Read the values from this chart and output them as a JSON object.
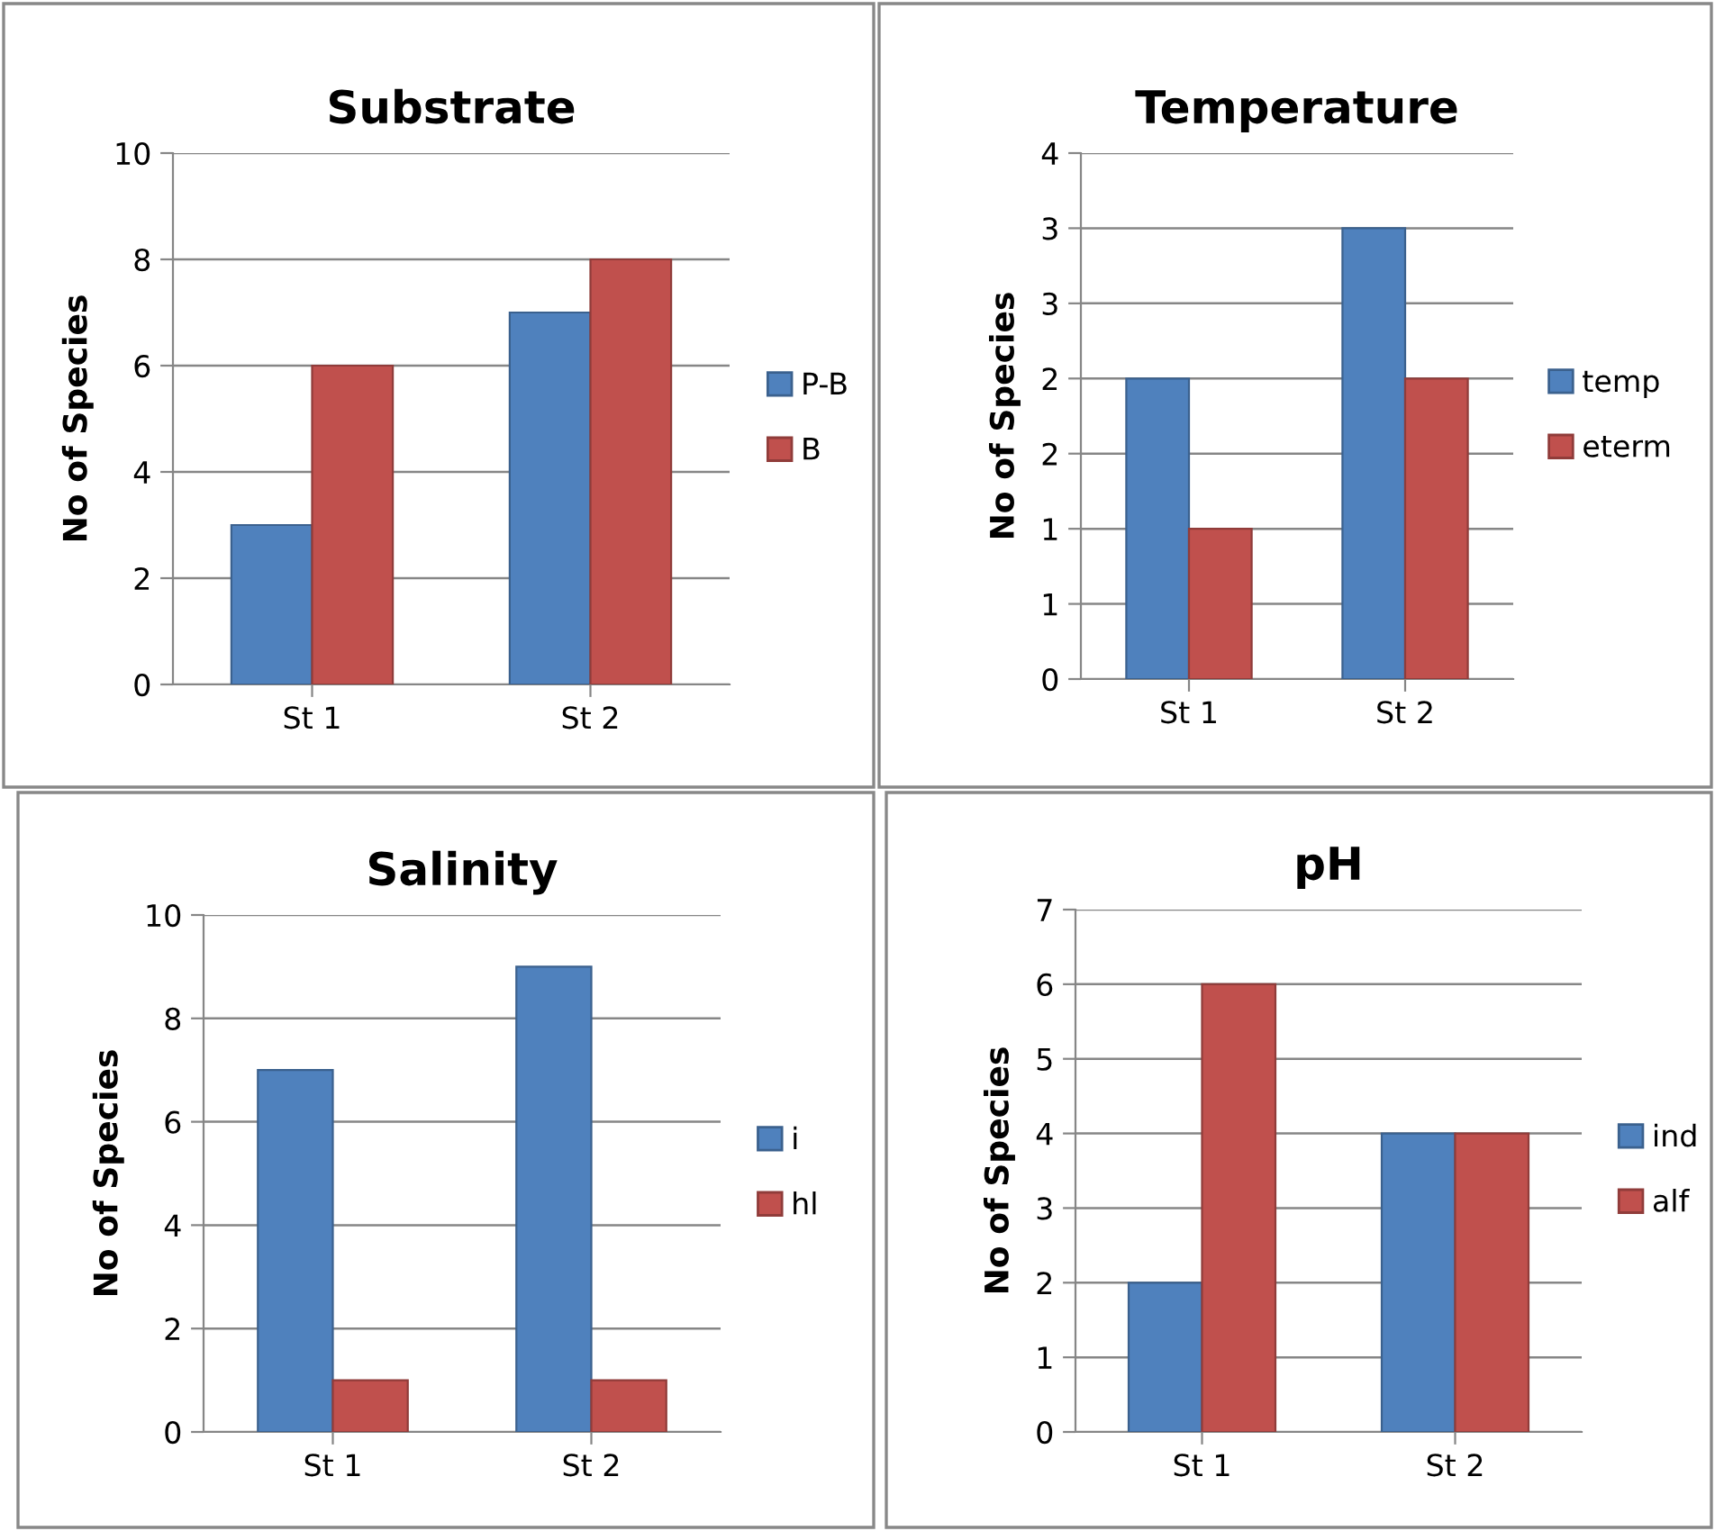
{
  "chart_data": [
    {
      "type": "bar",
      "title": "Substrate",
      "ylabel": "No of Species",
      "categories": [
        "St 1",
        "St 2"
      ],
      "series": [
        {
          "name": "P-B",
          "color": "#4f81bd",
          "values": [
            3,
            7
          ]
        },
        {
          "name": "B",
          "color": "#c0504d",
          "values": [
            6,
            8
          ]
        }
      ],
      "ylim": [
        0,
        10
      ],
      "yticks": [
        0,
        2,
        4,
        6,
        8,
        10
      ],
      "grid": "y",
      "legend": "right"
    },
    {
      "type": "bar",
      "title": "Temperature",
      "ylabel": "No of Species",
      "categories": [
        "St 1",
        "St 2"
      ],
      "series": [
        {
          "name": "temp",
          "color": "#4f81bd",
          "values": [
            2,
            3
          ]
        },
        {
          "name": "eterm",
          "color": "#c0504d",
          "values": [
            1,
            2
          ]
        }
      ],
      "ylim": [
        0,
        3.5
      ],
      "yticks": [
        0,
        {
          "value": 0.5,
          "label": "1"
        },
        1,
        {
          "value": 1.5,
          "label": "2"
        },
        2,
        {
          "value": 2.5,
          "label": "3"
        },
        3,
        {
          "value": 3.5,
          "label": "4"
        }
      ],
      "grid": "y",
      "legend": "right"
    },
    {
      "type": "bar",
      "title": "Salinity",
      "ylabel": "No of Species",
      "categories": [
        "St 1",
        "St 2"
      ],
      "series": [
        {
          "name": "i",
          "color": "#4f81bd",
          "values": [
            7,
            9
          ]
        },
        {
          "name": "hl",
          "color": "#c0504d",
          "values": [
            1,
            1
          ]
        }
      ],
      "ylim": [
        0,
        10
      ],
      "yticks": [
        0,
        2,
        4,
        6,
        8,
        10
      ],
      "grid": "y",
      "legend": "right"
    },
    {
      "type": "bar",
      "title": "pH",
      "ylabel": "No of Species",
      "categories": [
        "St 1",
        "St 2"
      ],
      "series": [
        {
          "name": "ind",
          "color": "#4f81bd",
          "values": [
            2,
            4
          ]
        },
        {
          "name": "alf",
          "color": "#c0504d",
          "values": [
            6,
            4
          ]
        }
      ],
      "ylim": [
        0,
        7
      ],
      "yticks": [
        0,
        1,
        2,
        3,
        4,
        5,
        6,
        7
      ],
      "grid": "y",
      "legend": "right"
    }
  ]
}
